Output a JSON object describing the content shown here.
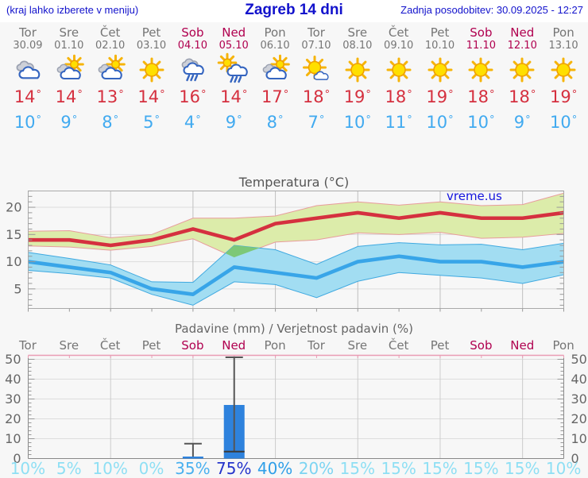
{
  "header": {
    "left_hint": "(kraj lahko izberete v meniju)",
    "title": "Zagreb 14 dni",
    "updated": "Zadnja posodobitev: 30.09.2025 - 12:27",
    "text_color": "#1212cc"
  },
  "forecast": {
    "colors": {
      "weekday": "#757575",
      "weekend": "#b0004f",
      "tmax": "#d5303f",
      "tmin": "#41aaf0"
    },
    "days": [
      {
        "name": "Tor",
        "date": "30.09",
        "weekend": false,
        "icon": "cloudy",
        "tmax": 14,
        "tmin": 10,
        "prob": "10%",
        "prob_color": "#8edff4"
      },
      {
        "name": "Sre",
        "date": "01.10",
        "weekend": false,
        "icon": "sun-cloud",
        "tmax": 14,
        "tmin": 9,
        "prob": "5%",
        "prob_color": "#8edff4"
      },
      {
        "name": "Čet",
        "date": "02.10",
        "weekend": false,
        "icon": "sun-cloud",
        "tmax": 13,
        "tmin": 8,
        "prob": "10%",
        "prob_color": "#8edff4"
      },
      {
        "name": "Pet",
        "date": "03.10",
        "weekend": false,
        "icon": "sunny",
        "tmax": 14,
        "tmin": 5,
        "prob": "0%",
        "prob_color": "#8edff4"
      },
      {
        "name": "Sob",
        "date": "04.10",
        "weekend": true,
        "icon": "rain",
        "tmax": 16,
        "tmin": 4,
        "prob": "35%",
        "prob_color": "#49b0ef"
      },
      {
        "name": "Ned",
        "date": "05.10",
        "weekend": true,
        "icon": "sun-rain",
        "tmax": 14,
        "tmin": 9,
        "prob": "75%",
        "prob_color": "#2534cb"
      },
      {
        "name": "Pon",
        "date": "06.10",
        "weekend": false,
        "icon": "sun-cloud",
        "tmax": 17,
        "tmin": 8,
        "prob": "40%",
        "prob_color": "#2f9fe8"
      },
      {
        "name": "Tor",
        "date": "07.10",
        "weekend": false,
        "icon": "sun-small-cloud",
        "tmax": 18,
        "tmin": 7,
        "prob": "20%",
        "prob_color": "#7cd4f2"
      },
      {
        "name": "Sre",
        "date": "08.10",
        "weekend": false,
        "icon": "sunny",
        "tmax": 19,
        "tmin": 10,
        "prob": "15%",
        "prob_color": "#8edff4"
      },
      {
        "name": "Čet",
        "date": "09.10",
        "weekend": false,
        "icon": "sunny",
        "tmax": 18,
        "tmin": 11,
        "prob": "15%",
        "prob_color": "#8edff4"
      },
      {
        "name": "Pet",
        "date": "10.10",
        "weekend": false,
        "icon": "sunny",
        "tmax": 19,
        "tmin": 10,
        "prob": "15%",
        "prob_color": "#8edff4"
      },
      {
        "name": "Sob",
        "date": "11.10",
        "weekend": true,
        "icon": "sunny",
        "tmax": 18,
        "tmin": 10,
        "prob": "15%",
        "prob_color": "#8edff4"
      },
      {
        "name": "Ned",
        "date": "12.10",
        "weekend": true,
        "icon": "sunny",
        "tmax": 18,
        "tmin": 9,
        "prob": "15%",
        "prob_color": "#8edff4"
      },
      {
        "name": "Pon",
        "date": "13.10",
        "weekend": false,
        "icon": "sunny",
        "tmax": 19,
        "tmin": 10,
        "prob": "10%",
        "prob_color": "#8edff4"
      }
    ]
  },
  "chart_data": [
    {
      "type": "line",
      "title": "Temperatura (°C)",
      "watermark": "vreme.us",
      "categories": [
        "Tor 30.09",
        "Sre 01.10",
        "Čet 02.10",
        "Pet 03.10",
        "Sob 04.10",
        "Ned 05.10",
        "Pon 06.10",
        "Tor 07.10",
        "Sre 08.10",
        "Čet 09.10",
        "Pet 10.10",
        "Sob 11.10",
        "Ned 12.10",
        "Pon 13.10"
      ],
      "ylim": [
        1.4,
        23
      ],
      "yticks": [
        5,
        10,
        15,
        20
      ],
      "grid_days": [
        2,
        4,
        6,
        8,
        10,
        12
      ],
      "series": [
        {
          "name": "max",
          "color": "#d5303f",
          "values": [
            14,
            14,
            13,
            14,
            16,
            14,
            17,
            18,
            19,
            18,
            19,
            18,
            18,
            19
          ]
        },
        {
          "name": "max_range_upper",
          "values": [
            15.6,
            15.7,
            14.4,
            15,
            18,
            18,
            18.4,
            20.3,
            21,
            20.4,
            21,
            20.3,
            20.5,
            22.6
          ]
        },
        {
          "name": "max_range_lower",
          "values": [
            12.9,
            12.7,
            12.1,
            12.8,
            14.2,
            10.8,
            13.6,
            14,
            15.3,
            15,
            15.4,
            14.3,
            14.5,
            15.2
          ]
        },
        {
          "name": "min",
          "color": "#38a5e8",
          "values": [
            10,
            9,
            8,
            5,
            4,
            9,
            8,
            7,
            10,
            11,
            10,
            10,
            9,
            10
          ]
        },
        {
          "name": "min_range_upper",
          "values": [
            11.7,
            10.6,
            9.4,
            6.3,
            6.2,
            13,
            12.2,
            9.5,
            12.8,
            13.5,
            13.1,
            13.2,
            12.2,
            13.4
          ]
        },
        {
          "name": "min_range_lower",
          "values": [
            8.4,
            7.8,
            7,
            4,
            2,
            6.3,
            5.8,
            3.4,
            6.4,
            8,
            7.5,
            7,
            6,
            7.6
          ]
        }
      ],
      "band_colors": {
        "max_band": "#dcecaa",
        "max_band_edge": "#e89c9c",
        "min_band": "#a2ddf2",
        "min_band_edge": "#3fa9e0",
        "overlap": "#7dc878"
      }
    },
    {
      "type": "bar",
      "title": "Padavine (mm) / Verjetnost padavin (%)",
      "categories": [
        "Tor",
        "Sre",
        "Čet",
        "Pet",
        "Sob",
        "Ned",
        "Pon",
        "Tor",
        "Sre",
        "Čet",
        "Pet",
        "Sob",
        "Ned",
        "Pon"
      ],
      "values": [
        0,
        0,
        0,
        0,
        1,
        27,
        0,
        0,
        0,
        0,
        0,
        0,
        0,
        0
      ],
      "whisker_top": [
        null,
        null,
        null,
        null,
        7.5,
        51,
        null,
        null,
        null,
        null,
        null,
        null,
        null,
        null
      ],
      "median": [
        null,
        null,
        null,
        null,
        null,
        3.5,
        null,
        null,
        null,
        null,
        null,
        null,
        null,
        null
      ],
      "probabilities": [
        10,
        5,
        10,
        0,
        35,
        75,
        40,
        20,
        15,
        15,
        15,
        15,
        15,
        10
      ],
      "ylim": [
        0,
        52
      ],
      "yticks": [
        0,
        10,
        20,
        30,
        40,
        50
      ],
      "bar_color": "#2e82dd",
      "whisker_color": "#555555",
      "top_border_color": "#ea9cb4"
    }
  ]
}
